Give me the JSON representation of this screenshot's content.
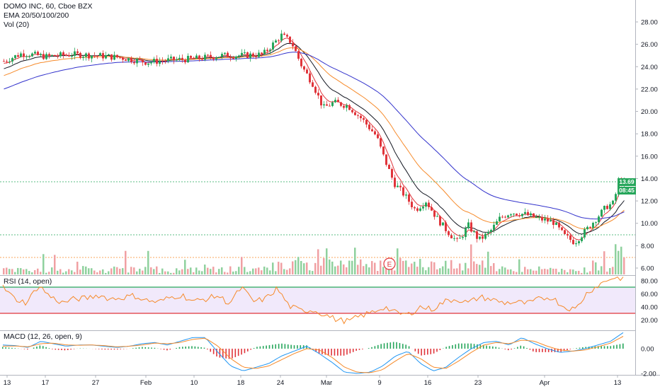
{
  "header": {
    "title": "DOMO INC, 60, Cboe BZX",
    "ema": "EMA 20/50/100/200",
    "vol": "Vol (20)"
  },
  "rsi_label": "RSI (14, open)",
  "macd_label": "MACD (12, 26, open, 9)",
  "price_tag": "13.69",
  "countdown_tag": "08:45",
  "earnings_marker": "E",
  "colors": {
    "up": "#26a65b",
    "down": "#e0353b",
    "ema20": "#e0353b",
    "ema50": "#131722",
    "ema100": "#f68a2a",
    "ema200": "#3333cc",
    "rsi": "#f68a2a",
    "rsi_band": "#f1e9fb",
    "macd": "#2196f3",
    "signal": "#f68a2a"
  },
  "chart_data": [
    {
      "type": "candlestick",
      "title": "DOMO INC, 60, Cboe BZX",
      "price_axis_ticks": [
        "28.00",
        "26.00",
        "24.00",
        "22.00",
        "20.00",
        "18.00",
        "16.00",
        "14.00",
        "12.00",
        "10.00",
        "8.00",
        "6.00"
      ],
      "ylim": [
        6,
        29
      ],
      "date_axis_ticks": [
        "13",
        "17",
        "27",
        "Feb",
        "10",
        "18",
        "24",
        "Mar",
        "9",
        "16",
        "23",
        "Apr",
        "13"
      ],
      "horizontal_levels": [
        13.69,
        9.0,
        7.0
      ],
      "close_points": [
        {
          "x": "13",
          "close": 24.6
        },
        {
          "x": "17",
          "close": 24.9
        },
        {
          "x": "27",
          "close": 25.0
        },
        {
          "x": "Feb",
          "close": 24.6
        },
        {
          "x": "10",
          "close": 24.8
        },
        {
          "x": "18",
          "close": 25.0
        },
        {
          "x": "24",
          "close": 26.7
        },
        {
          "x": "Mar",
          "close": 20.4
        },
        {
          "x": "9",
          "close": 16.0
        },
        {
          "x": "16",
          "close": 11.5
        },
        {
          "x": "23",
          "close": 8.3
        },
        {
          "x": "Apr",
          "close": 10.4
        },
        {
          "x": "13",
          "close": 13.69
        }
      ],
      "series": [
        {
          "name": "EMA 20",
          "color": "#e0353b"
        },
        {
          "name": "EMA 50",
          "color": "#131722"
        },
        {
          "name": "EMA 100",
          "color": "#f68a2a"
        },
        {
          "name": "EMA 200",
          "color": "#3333cc"
        }
      ]
    },
    {
      "type": "line",
      "title": "RSI (14, open)",
      "ylim": [
        5,
        90
      ],
      "y_ticks": [
        "80.00",
        "60.00",
        "40.00",
        "20.00"
      ],
      "bands": [
        30,
        70
      ],
      "values": [
        70,
        52,
        46,
        73,
        55,
        46,
        52,
        53,
        58,
        52,
        54,
        57,
        50,
        47,
        54,
        58,
        48,
        52,
        57,
        45,
        70,
        48,
        52,
        68,
        41,
        34,
        35,
        28,
        20,
        18,
        26,
        32,
        40,
        30,
        28,
        40,
        36,
        48,
        52,
        46,
        55,
        51,
        46,
        47,
        45,
        52,
        55,
        40,
        36,
        62,
        74,
        84,
        84
      ]
    },
    {
      "type": "bar",
      "title": "MACD (12, 26, open, 9)",
      "y_ticks": [
        "0.00",
        "-2.00"
      ],
      "ylim": [
        -2.3,
        1.4
      ],
      "macd": [
        0.3,
        0.25,
        0.1,
        0.6,
        0.4,
        0.2,
        0.3,
        0.3,
        0.2,
        0.1,
        0.2,
        0.4,
        0.5,
        0.3,
        0.6,
        0.9,
        0.9,
        -0.3,
        -1.4,
        -1.8,
        -1.5,
        -1.2,
        -0.6,
        -0.2,
        0.2,
        -0.4,
        -1.1,
        -1.9,
        -2.0,
        -1.9,
        -1.4,
        -0.6,
        -0.2,
        -1.2,
        -1.8,
        -1.5,
        -0.7,
        0.0,
        0.5,
        0.6,
        0.3,
        0.9,
        0.4,
        0.0,
        -0.3,
        -0.2,
        0.0,
        0.3,
        0.6,
        1.3
      ],
      "signal": [
        0.2,
        0.22,
        0.15,
        0.4,
        0.45,
        0.3,
        0.28,
        0.3,
        0.25,
        0.15,
        0.2,
        0.3,
        0.45,
        0.4,
        0.5,
        0.75,
        0.85,
        0.2,
        -0.8,
        -1.5,
        -1.6,
        -1.4,
        -0.9,
        -0.4,
        0.0,
        -0.1,
        -0.7,
        -1.5,
        -1.9,
        -1.95,
        -1.7,
        -1.0,
        -0.4,
        -0.8,
        -1.5,
        -1.6,
        -1.0,
        -0.3,
        0.3,
        0.5,
        0.4,
        0.7,
        0.6,
        0.2,
        -0.1,
        -0.2,
        -0.1,
        0.15,
        0.45,
        1.0
      ]
    }
  ]
}
